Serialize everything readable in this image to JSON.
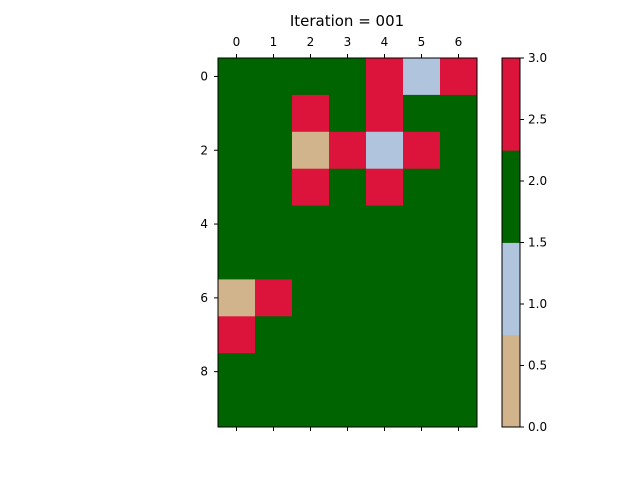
{
  "chart_data": {
    "type": "heatmap",
    "title": "Iteration = 001",
    "x_ticks": [
      "0",
      "1",
      "2",
      "3",
      "4",
      "5",
      "6"
    ],
    "y_ticks": [
      "0",
      "2",
      "4",
      "6",
      "8"
    ],
    "x_tick_values": [
      0,
      1,
      2,
      3,
      4,
      5,
      6
    ],
    "y_tick_values": [
      0,
      2,
      4,
      6,
      8
    ],
    "n_rows": 10,
    "n_cols": 7,
    "grid": [
      [
        2,
        2,
        2,
        2,
        3,
        1,
        3
      ],
      [
        2,
        2,
        3,
        2,
        3,
        2,
        2
      ],
      [
        2,
        2,
        0,
        3,
        1,
        3,
        2
      ],
      [
        2,
        2,
        3,
        2,
        3,
        2,
        2
      ],
      [
        2,
        2,
        2,
        2,
        2,
        2,
        2
      ],
      [
        2,
        2,
        2,
        2,
        2,
        2,
        2
      ],
      [
        0,
        3,
        2,
        2,
        2,
        2,
        2
      ],
      [
        3,
        2,
        2,
        2,
        2,
        2,
        2
      ],
      [
        2,
        2,
        2,
        2,
        2,
        2,
        2
      ],
      [
        2,
        2,
        2,
        2,
        2,
        2,
        2
      ]
    ],
    "colormap": [
      "#d2b48c",
      "#b0c4de",
      "#006400",
      "#dc143c"
    ],
    "colorbar": {
      "range": [
        0,
        3
      ],
      "ticks": [
        "0.0",
        "0.5",
        "1.0",
        "1.5",
        "2.0",
        "2.5",
        "3.0"
      ],
      "tick_values": [
        0,
        0.5,
        1,
        1.5,
        2,
        2.5,
        3
      ]
    },
    "x_axis_position": "top",
    "grid_lines": false,
    "legend": "colorbar-right"
  }
}
